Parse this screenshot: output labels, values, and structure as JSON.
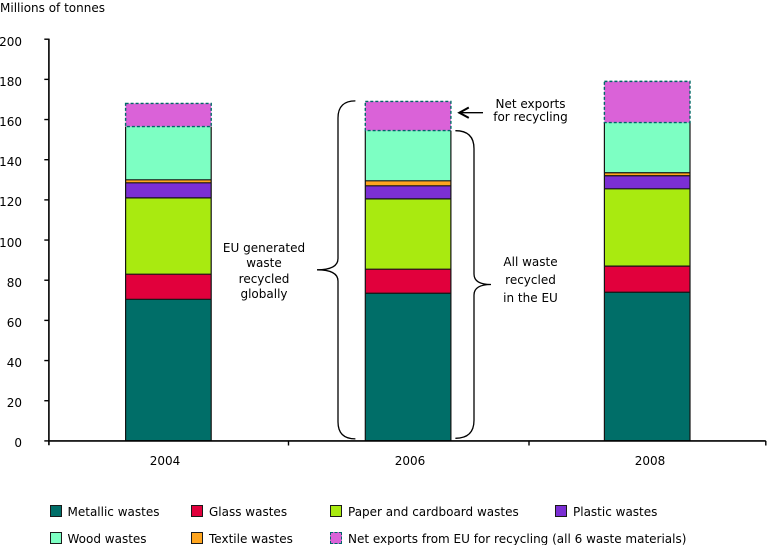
{
  "title": "Millions of tonnes",
  "chart_data": {
    "type": "stacked-bar",
    "title": "Millions of tonnes",
    "xlabel": "",
    "ylabel": "Millions of tonnes",
    "categories": [
      "2004",
      "2006",
      "2008"
    ],
    "series": [
      {
        "name": "Metallic wastes",
        "color": "#006e68",
        "values": [
          70.5,
          73.5,
          74.0
        ]
      },
      {
        "name": "Glass wastes",
        "color": "#e1003c",
        "values": [
          12.5,
          12.0,
          13.0
        ]
      },
      {
        "name": "Paper and cardboard wastes",
        "color": "#a9ea10",
        "values": [
          38.0,
          35.0,
          38.5
        ]
      },
      {
        "name": "Plastic wastes",
        "color": "#7b2fd4",
        "values": [
          7.5,
          6.5,
          6.5
        ]
      },
      {
        "name": "Textile wastes",
        "color": "#ffa51e",
        "values": [
          1.5,
          2.5,
          1.5
        ]
      },
      {
        "name": "Wood wastes",
        "color": "#7dffc3",
        "values": [
          26.5,
          25.0,
          25.0
        ]
      },
      {
        "name": "Net exports from EU for recycling (all 6 waste materials)",
        "color": "#da62d8",
        "values": [
          11.5,
          14.5,
          20.5
        ],
        "border_style": "dashed-teal"
      }
    ],
    "ylim": [
      0,
      200
    ],
    "y_ticks": [
      0,
      20,
      40,
      60,
      80,
      100,
      120,
      140,
      160,
      180,
      200
    ],
    "grid": "off",
    "legend_position": "bottom"
  },
  "legend": {
    "rows": [
      [
        {
          "series": 0
        },
        {
          "series": 1
        },
        {
          "series": 2
        },
        {
          "series": 3
        }
      ],
      [
        {
          "series": 5
        },
        {
          "series": 4
        },
        {
          "series": 6
        }
      ]
    ]
  },
  "annotations": {
    "net_exports": {
      "lines": [
        "Net exports",
        "for recycling"
      ]
    },
    "eu_generated": {
      "lines": [
        "EU generated",
        "waste",
        "recycled",
        "globally"
      ]
    },
    "all_waste": {
      "lines": [
        "All waste",
        "recycled",
        "in the EU"
      ]
    }
  }
}
